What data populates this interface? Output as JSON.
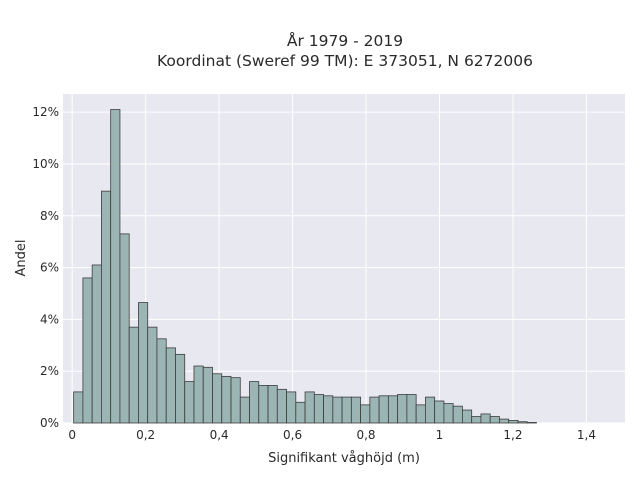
{
  "chart_data": {
    "type": "bar",
    "title": "År 1979 - 2019",
    "subtitle": "Koordinat (Sweref 99 TM): E 373051, N 6272006",
    "xlabel": "Signifikant våghöjd (m)",
    "ylabel": "Andel",
    "xlim": [
      -0.025,
      1.505
    ],
    "ylim": [
      0,
      12.7
    ],
    "x_ticks": [
      0,
      0.2,
      0.4,
      0.6,
      0.8,
      1.0,
      1.2,
      1.4
    ],
    "x_tick_labels": [
      "0",
      "0,2",
      "0,4",
      "0,6",
      "0,8",
      "1",
      "1,2",
      "1,4"
    ],
    "y_ticks": [
      0,
      2,
      4,
      6,
      8,
      10,
      12
    ],
    "y_tick_labels": [
      "0%",
      "2%",
      "4%",
      "6%",
      "8%",
      "10%",
      "12%"
    ],
    "bin_start": 0.004,
    "bin_width": 0.0252,
    "values": [
      1.2,
      5.6,
      6.1,
      8.95,
      12.1,
      7.3,
      3.7,
      4.65,
      3.7,
      3.25,
      2.9,
      2.65,
      1.6,
      2.2,
      2.15,
      1.9,
      1.8,
      1.75,
      1.0,
      1.6,
      1.45,
      1.45,
      1.3,
      1.2,
      0.8,
      1.2,
      1.1,
      1.05,
      1.0,
      1.0,
      1.0,
      0.7,
      1.0,
      1.05,
      1.05,
      1.1,
      1.1,
      0.7,
      1.0,
      0.85,
      0.75,
      0.65,
      0.5,
      0.25,
      0.35,
      0.25,
      0.15,
      0.1,
      0.05,
      0.02
    ],
    "colors": {
      "bar_fill": "#9bb5b4",
      "bar_edge": "#3d3d3d",
      "plot_bg": "#e8e8f0",
      "grid": "#ffffff"
    },
    "grid": true
  }
}
